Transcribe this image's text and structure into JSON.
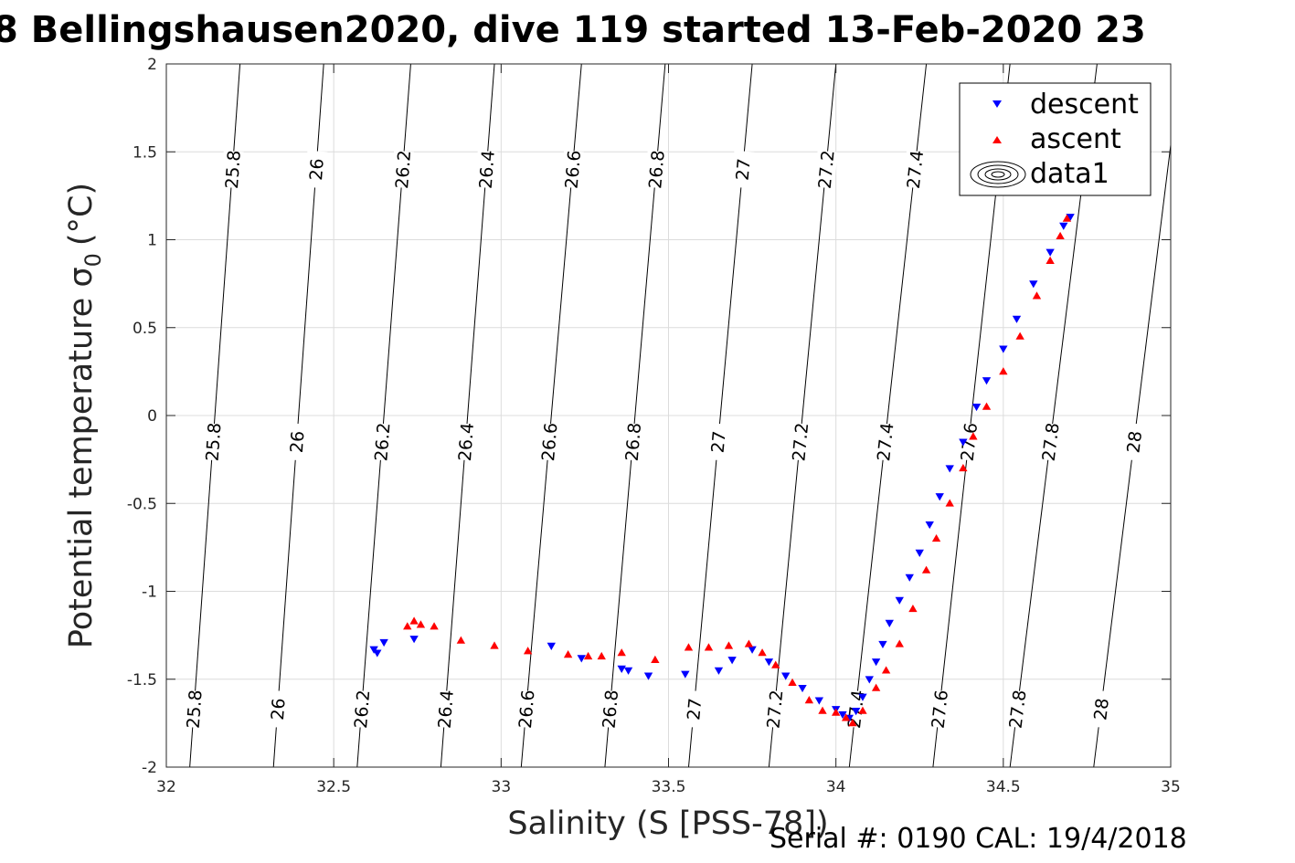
{
  "chart_data": {
    "type": "scatter",
    "title": "8 Bellingshausen2020, dive 119 started 13-Feb-2020 23",
    "xlabel": "Salinity (S [PSS-78])",
    "ylabel_main": "Potential temperature σ",
    "ylabel_sub": "0",
    "ylabel_unit": "(°C)",
    "xlim": [
      32,
      35
    ],
    "ylim": [
      -2,
      2
    ],
    "xticks": [
      32,
      32.5,
      33,
      33.5,
      34,
      34.5,
      35
    ],
    "xtick_labels": [
      "32",
      "32.5",
      "33",
      "33.5",
      "34",
      "34.5",
      "35"
    ],
    "yticks": [
      -2,
      -1.5,
      -1,
      -0.5,
      0,
      0.5,
      1,
      1.5,
      2
    ],
    "ytick_labels": [
      "-2",
      "-1.5",
      "-1",
      "-0.5",
      "0",
      "0.5",
      "1",
      "1.5",
      "2"
    ],
    "grid": true,
    "legend_position": "top-right",
    "legend": [
      "descent",
      "ascent",
      "data1"
    ],
    "colors": {
      "descent": "#0000ff",
      "ascent": "#ff0000",
      "contour": "#000000",
      "grid": "#dcdcdc"
    },
    "contour_levels": [
      25.8,
      26,
      26.2,
      26.4,
      26.6,
      26.8,
      27,
      27.2,
      27.4,
      27.6,
      27.8,
      28
    ],
    "contour_label_text": [
      "25.8",
      "26",
      "26.2",
      "26.4",
      "26.6",
      "26.8",
      "27",
      "27.2",
      "27.4",
      "27.6",
      "27.8",
      "28"
    ],
    "contour_x_at_theta": {
      "theta": [
        -2,
        2
      ],
      "x": [
        [
          32.07,
          32.22
        ],
        [
          32.32,
          32.47
        ],
        [
          32.57,
          32.73
        ],
        [
          32.82,
          32.98
        ],
        [
          33.06,
          33.24
        ],
        [
          33.31,
          33.49
        ],
        [
          33.56,
          33.75
        ],
        [
          33.8,
          34.0
        ],
        [
          34.04,
          34.27
        ],
        [
          34.29,
          34.52
        ],
        [
          34.52,
          34.78
        ],
        [
          34.77,
          35.03
        ]
      ]
    },
    "series": [
      {
        "name": "descent",
        "marker": "triangle-down",
        "color": "#0000ff",
        "points": [
          [
            32.62,
            -1.33
          ],
          [
            32.63,
            -1.35
          ],
          [
            32.65,
            -1.29
          ],
          [
            32.74,
            -1.27
          ],
          [
            33.15,
            -1.31
          ],
          [
            33.24,
            -1.38
          ],
          [
            33.36,
            -1.44
          ],
          [
            33.38,
            -1.45
          ],
          [
            33.44,
            -1.48
          ],
          [
            33.55,
            -1.47
          ],
          [
            33.65,
            -1.45
          ],
          [
            33.69,
            -1.39
          ],
          [
            33.75,
            -1.33
          ],
          [
            33.8,
            -1.4
          ],
          [
            33.85,
            -1.48
          ],
          [
            33.9,
            -1.55
          ],
          [
            33.95,
            -1.62
          ],
          [
            34.0,
            -1.67
          ],
          [
            34.02,
            -1.7
          ],
          [
            34.04,
            -1.72
          ],
          [
            34.06,
            -1.68
          ],
          [
            34.08,
            -1.6
          ],
          [
            34.1,
            -1.5
          ],
          [
            34.12,
            -1.4
          ],
          [
            34.14,
            -1.3
          ],
          [
            34.16,
            -1.18
          ],
          [
            34.19,
            -1.05
          ],
          [
            34.22,
            -0.92
          ],
          [
            34.25,
            -0.78
          ],
          [
            34.28,
            -0.62
          ],
          [
            34.31,
            -0.46
          ],
          [
            34.34,
            -0.3
          ],
          [
            34.38,
            -0.15
          ],
          [
            34.42,
            0.05
          ],
          [
            34.45,
            0.2
          ],
          [
            34.5,
            0.38
          ],
          [
            34.54,
            0.55
          ],
          [
            34.59,
            0.75
          ],
          [
            34.64,
            0.93
          ],
          [
            34.68,
            1.08
          ],
          [
            34.7,
            1.13
          ]
        ]
      },
      {
        "name": "ascent",
        "marker": "triangle-up",
        "color": "#ff0000",
        "points": [
          [
            32.72,
            -1.2
          ],
          [
            32.74,
            -1.17
          ],
          [
            32.76,
            -1.19
          ],
          [
            32.8,
            -1.2
          ],
          [
            32.88,
            -1.28
          ],
          [
            32.98,
            -1.31
          ],
          [
            33.08,
            -1.34
          ],
          [
            33.2,
            -1.36
          ],
          [
            33.26,
            -1.37
          ],
          [
            33.3,
            -1.37
          ],
          [
            33.36,
            -1.35
          ],
          [
            33.46,
            -1.39
          ],
          [
            33.56,
            -1.32
          ],
          [
            33.62,
            -1.32
          ],
          [
            33.68,
            -1.31
          ],
          [
            33.74,
            -1.3
          ],
          [
            33.78,
            -1.35
          ],
          [
            33.82,
            -1.42
          ],
          [
            33.87,
            -1.52
          ],
          [
            33.92,
            -1.62
          ],
          [
            33.96,
            -1.68
          ],
          [
            34.0,
            -1.69
          ],
          [
            34.03,
            -1.72
          ],
          [
            34.05,
            -1.75
          ],
          [
            34.08,
            -1.68
          ],
          [
            34.12,
            -1.55
          ],
          [
            34.15,
            -1.45
          ],
          [
            34.19,
            -1.3
          ],
          [
            34.23,
            -1.1
          ],
          [
            34.27,
            -0.88
          ],
          [
            34.3,
            -0.7
          ],
          [
            34.34,
            -0.5
          ],
          [
            34.38,
            -0.3
          ],
          [
            34.41,
            -0.12
          ],
          [
            34.45,
            0.05
          ],
          [
            34.5,
            0.25
          ],
          [
            34.55,
            0.45
          ],
          [
            34.6,
            0.68
          ],
          [
            34.64,
            0.88
          ],
          [
            34.67,
            1.02
          ],
          [
            34.69,
            1.12
          ]
        ]
      }
    ]
  },
  "footer": {
    "serial_text": "Serial #: 0190  CAL: 19/4/2018"
  }
}
